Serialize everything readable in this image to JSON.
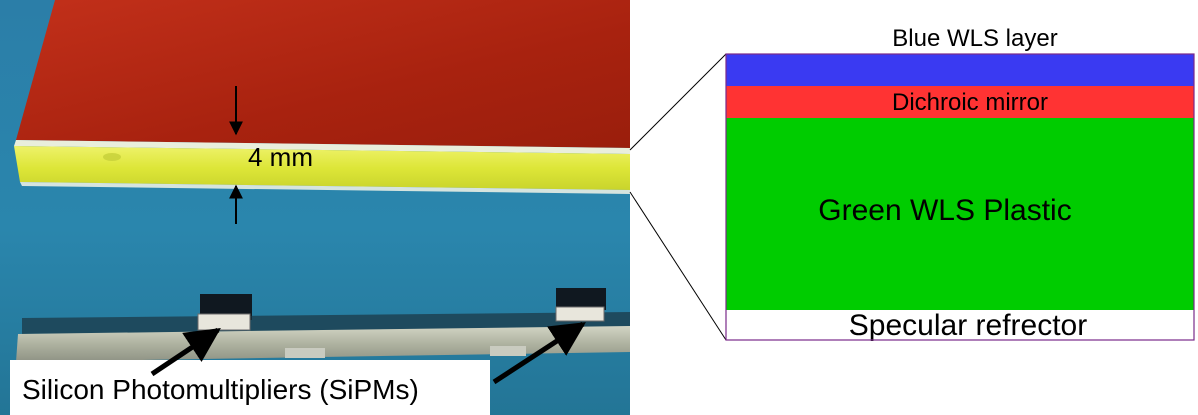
{
  "photo": {
    "thickness_label": "4 mm",
    "sipm_label": "Silicon Photomultipliers (SiPMs)"
  },
  "layers": {
    "blue": {
      "label": "Blue WLS layer",
      "color": "#3a3af2"
    },
    "dichroic": {
      "label": "Dichroic mirror",
      "color": "#ff3333"
    },
    "green": {
      "label": "Green WLS Plastic",
      "color": "#00cc00"
    },
    "reflector": {
      "label": "Specular refrector",
      "color": "#ffffff"
    }
  },
  "colors": {
    "tile_red": "#b32814",
    "tile_yellow": "#e2ec3a",
    "background_blue": "#2a7da3",
    "stack_border": "#7a2a8a"
  }
}
